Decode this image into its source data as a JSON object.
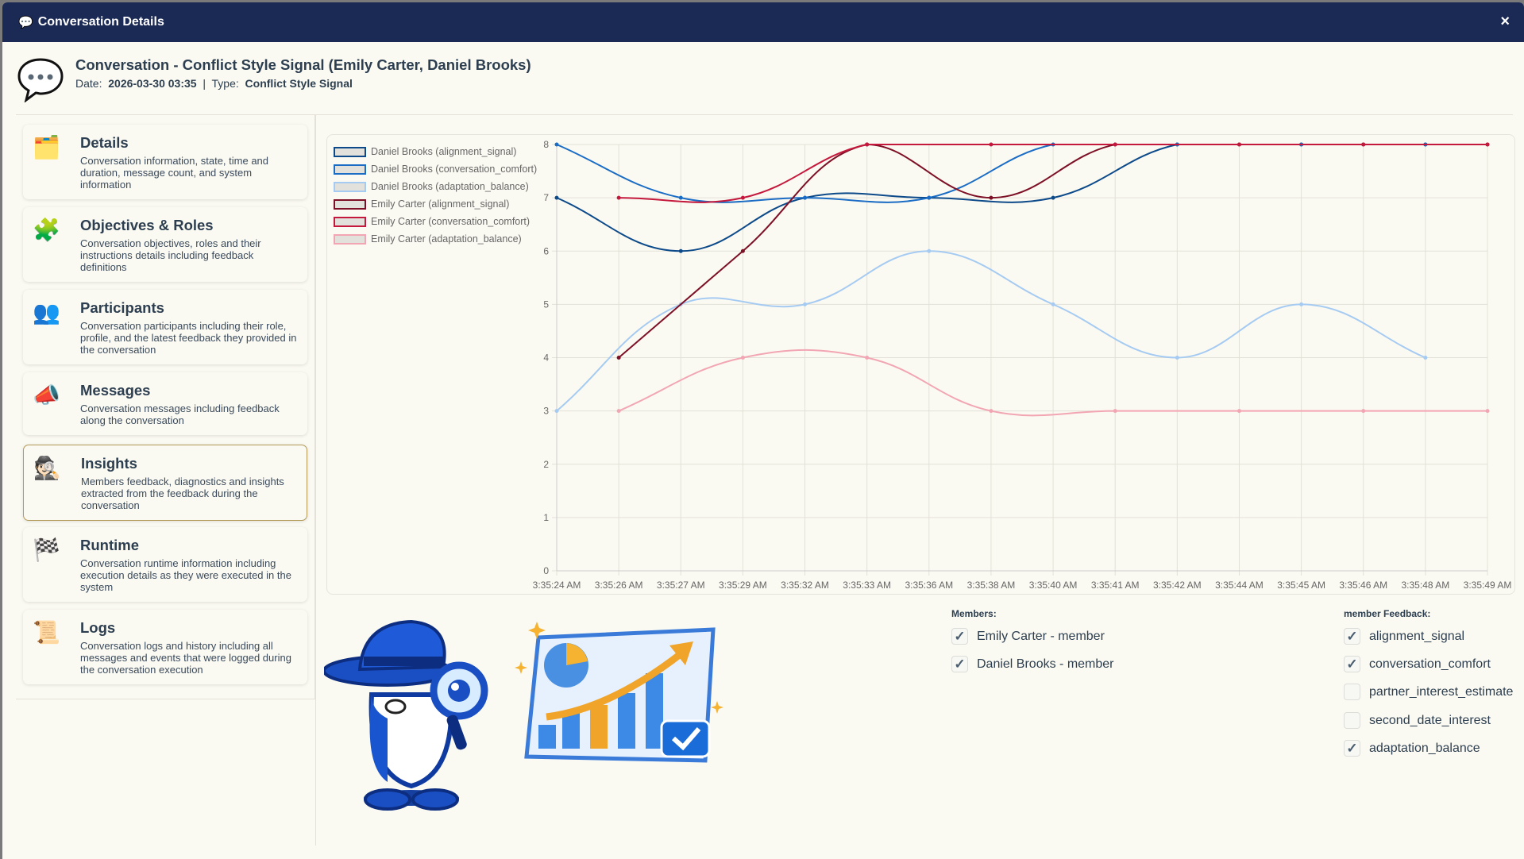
{
  "window": {
    "title": "Conversation Details",
    "title_icon": "speech-bubble-icon",
    "close_label": "×"
  },
  "header": {
    "title": "Conversation - Conflict Style Signal (Emily Carter, Daniel Brooks)",
    "date_label": "Date:",
    "date": "2026-03-30 03:35",
    "sep": "|",
    "type_label": "Type:",
    "type": "Conflict Style Signal"
  },
  "sidebar": {
    "items": [
      {
        "icon": "🗂️",
        "title": "Details",
        "desc": "Conversation information, state, time and duration, message count, and system information"
      },
      {
        "icon": "🧩",
        "title": "Objectives & Roles",
        "desc": "Conversation objectives, roles and their instructions details including feedback definitions"
      },
      {
        "icon": "👥",
        "title": "Participants",
        "desc": "Conversation participants including their role, profile, and the latest feedback they provided in the conversation"
      },
      {
        "icon": "📣",
        "title": "Messages",
        "desc": "Conversation messages including feedback along the conversation"
      },
      {
        "icon": "🕵🏻",
        "title": "Insights",
        "desc": "Members feedback, diagnostics and insights extracted from the feedback during the conversation",
        "active": true
      },
      {
        "icon": "🏁",
        "title": "Runtime",
        "desc": "Conversation runtime information including execution details as they were executed in the system"
      },
      {
        "icon": "📜",
        "title": "Logs",
        "desc": "Conversation logs and history including all messages and events that were logged during the conversation execution"
      }
    ]
  },
  "chart_data": {
    "type": "line",
    "x": [
      "3:35:24 AM",
      "3:35:26 AM",
      "3:35:27 AM",
      "3:35:29 AM",
      "3:35:32 AM",
      "3:35:33 AM",
      "3:35:36 AM",
      "3:35:38 AM",
      "3:35:40 AM",
      "3:35:41 AM",
      "3:35:42 AM",
      "3:35:44 AM",
      "3:35:45 AM",
      "3:35:46 AM",
      "3:35:48 AM",
      "3:35:49 AM"
    ],
    "ylim": [
      0,
      8
    ],
    "yticks": [
      "0",
      "1",
      "2",
      "3",
      "4",
      "5",
      "6",
      "7",
      "8"
    ],
    "grid": true,
    "legend_position": "top-left",
    "series": [
      {
        "name": "Daniel Brooks (alignment_signal)",
        "color": "#0d4a8a",
        "values": [
          7,
          null,
          6,
          null,
          7,
          null,
          7,
          null,
          7,
          null,
          8,
          null,
          8,
          null,
          8,
          null
        ]
      },
      {
        "name": "Daniel Brooks (conversation_comfort)",
        "color": "#1a6cc4",
        "values": [
          8,
          null,
          7,
          null,
          7,
          null,
          7,
          null,
          8,
          null,
          8,
          null,
          8,
          null,
          8,
          null
        ]
      },
      {
        "name": "Daniel Brooks (adaptation_balance)",
        "color": "#a6cbf2",
        "values": [
          3,
          null,
          5,
          null,
          5,
          null,
          6,
          null,
          5,
          null,
          4,
          null,
          5,
          null,
          4,
          null
        ]
      },
      {
        "name": "Emily Carter (alignment_signal)",
        "color": "#7d1026",
        "values": [
          null,
          4,
          null,
          6,
          null,
          8,
          null,
          7,
          null,
          8,
          null,
          8,
          null,
          8,
          null,
          8
        ]
      },
      {
        "name": "Emily Carter (conversation_comfort)",
        "color": "#c4183c",
        "values": [
          null,
          7,
          null,
          7,
          null,
          8,
          null,
          8,
          null,
          8,
          null,
          8,
          null,
          8,
          null,
          8
        ]
      },
      {
        "name": "Emily Carter (adaptation_balance)",
        "color": "#f2a6b4",
        "values": [
          null,
          3,
          null,
          4,
          null,
          4,
          null,
          3,
          null,
          3,
          null,
          3,
          null,
          3,
          null,
          3
        ]
      }
    ]
  },
  "members": {
    "label": "Members:",
    "items": [
      {
        "label": "Emily Carter - member",
        "checked": true
      },
      {
        "label": "Daniel Brooks - member",
        "checked": true
      }
    ]
  },
  "feedback": {
    "label": "member Feedback:",
    "items": [
      {
        "label": "alignment_signal",
        "checked": true
      },
      {
        "label": "conversation_comfort",
        "checked": true
      },
      {
        "label": "partner_interest_estimate",
        "checked": false
      },
      {
        "label": "second_date_interest",
        "checked": false
      },
      {
        "label": "adaptation_balance",
        "checked": true
      }
    ]
  },
  "check_mark": "✓"
}
